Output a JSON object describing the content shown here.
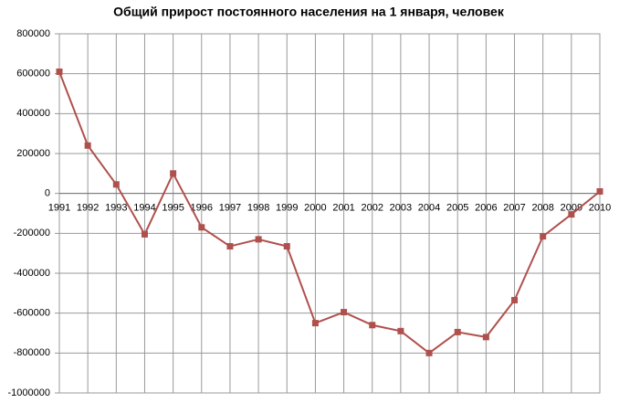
{
  "chart_data": {
    "type": "line",
    "title": "Общий прирост постоянного населения на  1 января, человек",
    "categories": [
      "1991",
      "1992",
      "1993",
      "1994",
      "1995",
      "1996",
      "1997",
      "1998",
      "1999",
      "2000",
      "2001",
      "2002",
      "2003",
      "2004",
      "2005",
      "2006",
      "2007",
      "2008",
      "2009",
      "2010"
    ],
    "series": [
      {
        "name": "Общий прирост",
        "color": "#b0504d",
        "values": [
          610000,
          240000,
          45000,
          -205000,
          100000,
          -170000,
          -265000,
          -230000,
          -265000,
          -650000,
          -595000,
          -660000,
          -690000,
          -800000,
          -695000,
          -720000,
          -535000,
          -215000,
          -105000,
          10000
        ]
      }
    ],
    "ylim": [
      -1000000,
      800000
    ],
    "yticks": [
      -1000000,
      -800000,
      -600000,
      -400000,
      -200000,
      0,
      200000,
      400000,
      600000,
      800000
    ],
    "grid": true
  }
}
